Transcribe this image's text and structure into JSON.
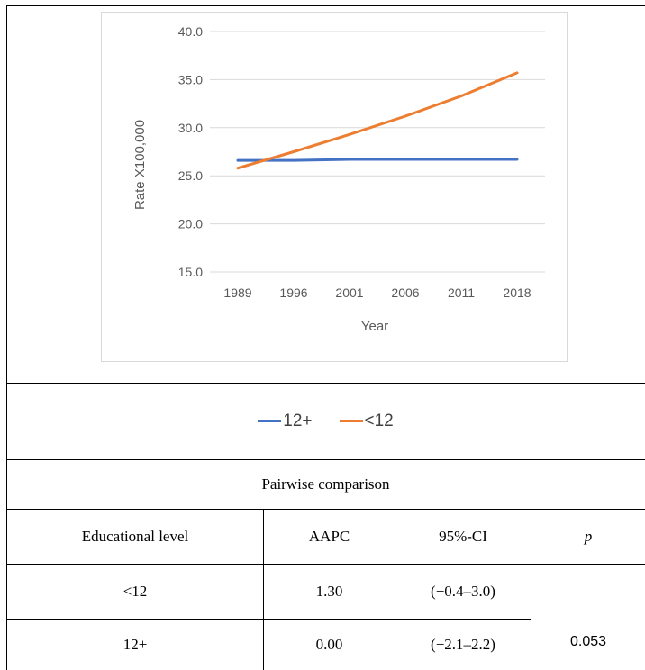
{
  "chart_data": {
    "type": "line",
    "x": [
      "1989",
      "1996",
      "2001",
      "2006",
      "2011",
      "2018"
    ],
    "xlabel": "Year",
    "ylabel": "Rate X100,000",
    "ylim": [
      15.0,
      40.0
    ],
    "yticks": [
      "40.0",
      "35.0",
      "30.0",
      "25.0",
      "20.0",
      "15.0"
    ],
    "grid": true,
    "legend_position": "bottom",
    "series": [
      {
        "name": "12+",
        "color": "#4472c4",
        "values": [
          26.6,
          26.6,
          26.7,
          26.7,
          26.7,
          26.7
        ]
      },
      {
        "name": "<12",
        "color": "#ed7d31",
        "values": [
          25.8,
          27.5,
          29.3,
          31.2,
          33.3,
          35.7
        ]
      }
    ]
  },
  "table": {
    "title": "Pairwise comparison",
    "headers": [
      "Educational level",
      "AAPC",
      "95%-CI",
      "p"
    ],
    "rows": [
      {
        "level": "<12",
        "aapc": "1.30",
        "ci": "(−0.4–3.0)"
      },
      {
        "level": "12+",
        "aapc": "0.00",
        "ci": "(−2.1–2.2)"
      }
    ],
    "p_value": "0.053"
  }
}
